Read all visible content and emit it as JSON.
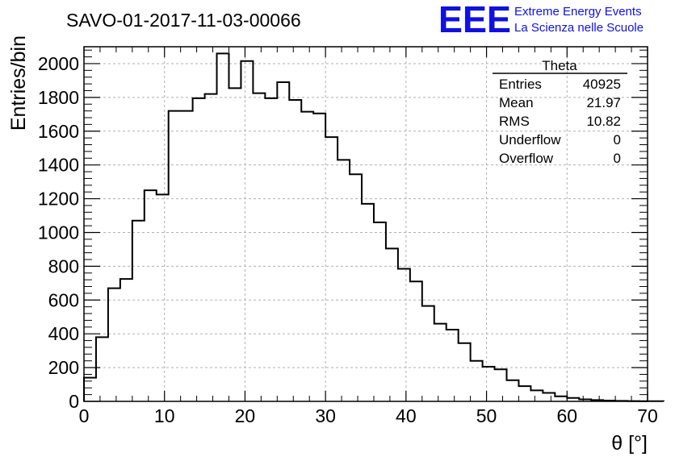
{
  "chart_data": {
    "type": "histogram",
    "title": "SAVO-01-2017-11-03-00066",
    "xlabel": "θ [°]",
    "ylabel": "Entries/bin",
    "xlim": [
      0,
      70
    ],
    "ylim": [
      0,
      2100
    ],
    "xticks": [
      "0",
      "10",
      "20",
      "30",
      "40",
      "50",
      "60",
      "70"
    ],
    "yticks": [
      "0",
      "200",
      "400",
      "600",
      "800",
      "1000",
      "1200",
      "1400",
      "1600",
      "1800",
      "2000"
    ],
    "bin_width": 1.5,
    "bin_start": 0,
    "values": [
      140,
      380,
      670,
      725,
      1070,
      1250,
      1225,
      1720,
      1720,
      1795,
      1820,
      2060,
      1855,
      2015,
      1825,
      1795,
      1890,
      1785,
      1715,
      1705,
      1565,
      1430,
      1345,
      1170,
      1060,
      905,
      785,
      710,
      565,
      460,
      425,
      345,
      240,
      205,
      190,
      125,
      90,
      65,
      50,
      30,
      20,
      12,
      8,
      5,
      3,
      2,
      1,
      1
    ],
    "grid": true
  },
  "stats_box": {
    "title": "Theta",
    "rows": [
      {
        "label": "Entries",
        "value": "40925"
      },
      {
        "label": "Mean",
        "value": "21.97"
      },
      {
        "label": "RMS",
        "value": "10.82"
      },
      {
        "label": "Underflow",
        "value": "0"
      },
      {
        "label": "Overflow",
        "value": "0"
      }
    ]
  },
  "logo": {
    "mark": "EEE",
    "line1": "Extreme Energy Events",
    "line2": "La Scienza nelle Scuole",
    "color": "#1010e0"
  }
}
